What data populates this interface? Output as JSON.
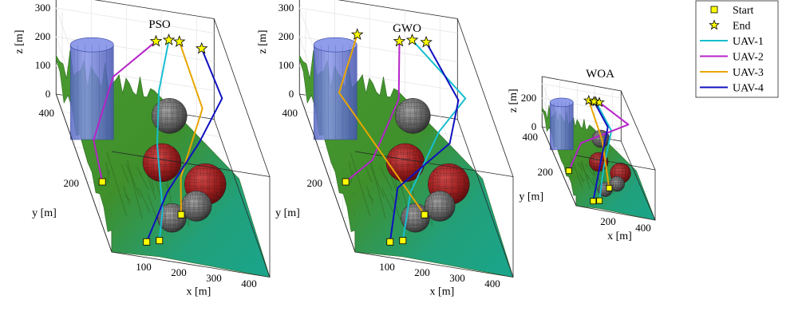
{
  "chart_data": {
    "type": "line",
    "legend": {
      "placement": "top-right",
      "entries": [
        {
          "label": "Start",
          "marker": "square",
          "color": "#ffff00"
        },
        {
          "label": "End",
          "marker": "star",
          "color": "#ffff00"
        },
        {
          "label": "UAV-1",
          "color": "#17becf"
        },
        {
          "label": "UAV-2",
          "color": "#b623c9"
        },
        {
          "label": "UAV-3",
          "color": "#e8a600"
        },
        {
          "label": "UAV-4",
          "color": "#1010c0"
        }
      ]
    },
    "obstacle_colors": {
      "cylinder": "#6e7fd8",
      "sphere_red": "#9b1c1c",
      "sphere_mesh": "#6f6f6f"
    },
    "terrain_colors": {
      "low": "#1aa48c",
      "high": "#46a434",
      "dark": "#2e6b1f"
    },
    "panels": [
      {
        "title": "PSO",
        "xlabel": "x [m]",
        "ylabel": "y [m]",
        "zlabel": "z [m]",
        "xlim": [
          0,
          450
        ],
        "ylim": [
          0,
          450
        ],
        "zlim": [
          0,
          350
        ],
        "xticks": [
          "100",
          "200",
          "300",
          "400"
        ],
        "yticks": [
          "200",
          "400"
        ],
        "zticks": [
          "0",
          "100",
          "200",
          "300"
        ],
        "series": [
          {
            "name": "UAV-1",
            "points": [
              [
                150,
                40,
                20
              ],
              [
                180,
                100,
                60
              ],
              [
                200,
                200,
                170
              ],
              [
                240,
                300,
                240
              ],
              [
                300,
                390,
                320
              ]
            ]
          },
          {
            "name": "UAV-2",
            "points": [
              [
                40,
                190,
                20
              ],
              [
                40,
                260,
                80
              ],
              [
                120,
                330,
                230
              ],
              [
                260,
                380,
                320
              ]
            ]
          },
          {
            "name": "UAV-3",
            "points": [
              [
                240,
                120,
                30
              ],
              [
                260,
                180,
                90
              ],
              [
                350,
                260,
                250
              ],
              [
                330,
                390,
                320
              ]
            ]
          },
          {
            "name": "UAV-4",
            "points": [
              [
                110,
                30,
                20
              ],
              [
                200,
                120,
                100
              ],
              [
                320,
                200,
                200
              ],
              [
                420,
                300,
                250
              ],
              [
                390,
                380,
                320
              ]
            ]
          }
        ]
      },
      {
        "title": "GWO",
        "xlabel": "x [m]",
        "ylabel": "y [m]",
        "zlabel": "z [m]",
        "xlim": [
          0,
          450
        ],
        "ylim": [
          0,
          450
        ],
        "zlim": [
          0,
          350
        ],
        "xticks": [
          "100",
          "200",
          "300",
          "400"
        ],
        "yticks": [
          "200",
          "400"
        ],
        "zticks": [
          "0",
          "100",
          "200",
          "300"
        ],
        "series": [
          {
            "name": "UAV-1",
            "points": [
              [
                150,
                40,
                20
              ],
              [
                200,
                120,
                100
              ],
              [
                320,
                230,
                200
              ],
              [
                420,
                300,
                250
              ],
              [
                300,
                390,
                320
              ]
            ]
          },
          {
            "name": "UAV-2",
            "points": [
              [
                40,
                190,
                20
              ],
              [
                120,
                200,
                100
              ],
              [
                230,
                300,
                210
              ],
              [
                260,
                380,
                320
              ]
            ]
          },
          {
            "name": "UAV-3",
            "points": [
              [
                240,
                120,
                30
              ],
              [
                60,
                300,
                200
              ],
              [
                140,
                380,
                320
              ]
            ]
          },
          {
            "name": "UAV-4",
            "points": [
              [
                110,
                30,
                20
              ],
              [
                160,
                110,
                120
              ],
              [
                340,
                200,
                200
              ],
              [
                400,
                300,
                240
              ],
              [
                340,
                390,
                320
              ]
            ]
          }
        ]
      },
      {
        "title": "WOA",
        "xlabel": "x [m]",
        "ylabel": "y [m]",
        "zlabel": "z [m]",
        "xlim": [
          0,
          450
        ],
        "ylim": [
          0,
          450
        ],
        "zlim": [
          0,
          350
        ],
        "xticks": [
          "200",
          "400"
        ],
        "yticks": [
          "200",
          "400"
        ],
        "zticks": [
          "0",
          "200"
        ],
        "series": [
          {
            "name": "UAV-1",
            "points": [
              [
                150,
                40,
                20
              ],
              [
                220,
                150,
                120
              ],
              [
                330,
                300,
                230
              ],
              [
                280,
                390,
                310
              ]
            ]
          },
          {
            "name": "UAV-2",
            "points": [
              [
                40,
                190,
                20
              ],
              [
                140,
                260,
                150
              ],
              [
                440,
                330,
                260
              ],
              [
                300,
                390,
                310
              ]
            ]
          },
          {
            "name": "UAV-3",
            "points": [
              [
                240,
                120,
                30
              ],
              [
                260,
                260,
                200
              ],
              [
                240,
                390,
                310
              ]
            ]
          },
          {
            "name": "UAV-4",
            "points": [
              [
                110,
                30,
                20
              ],
              [
                200,
                150,
                140
              ],
              [
                310,
                300,
                250
              ],
              [
                270,
                390,
                310
              ]
            ]
          }
        ]
      }
    ]
  }
}
